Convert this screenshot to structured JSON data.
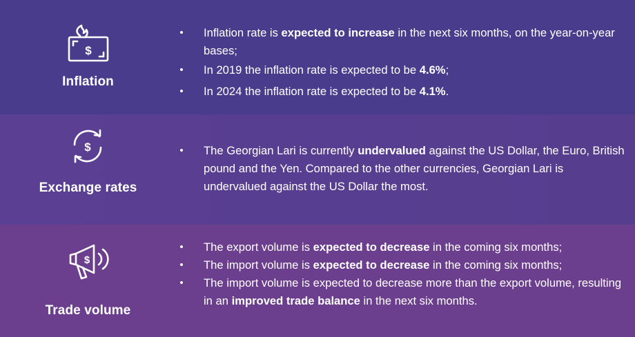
{
  "inflation": {
    "label": "Inflation",
    "icon": "money-flame-icon",
    "bullets": [
      {
        "pre": "Inflation rate is ",
        "bold": "expected to increase",
        "post": " in the next six months, on the year-on-year bases;"
      },
      {
        "pre": "In 2019 the inflation rate is expected to be ",
        "bold": "4.6%",
        "post": ";"
      },
      {
        "pre": "In 2024 the inflation rate is expected to be ",
        "bold": "4.1%",
        "post": "."
      }
    ]
  },
  "exchange": {
    "label": "Exchange rates",
    "icon": "currency-exchange-icon",
    "bullets": [
      {
        "pre": "The Georgian Lari is currently ",
        "bold": "undervalued",
        "post": " against the US Dollar, the Euro, British pound and the Yen. Compared to the other currencies, Georgian Lari is undervalued against the US Dollar the most."
      }
    ]
  },
  "trade": {
    "label": "Trade volume",
    "icon": "megaphone-dollar-icon",
    "bullets": [
      {
        "pre": "The export volume is ",
        "bold": "expected to decrease",
        "post": " in the coming six months;"
      },
      {
        "pre": "The import volume is ",
        "bold": "expected to decrease",
        "post": " in the coming six months;"
      },
      {
        "pre": "The import volume is expected to decrease more than the export volume, resulting in an ",
        "bold": "improved trade balance",
        "post": " in the next six months."
      }
    ]
  },
  "bullet_char": "•",
  "colors": {
    "band1": "#4a3c8c",
    "band2": "#5a3f92",
    "band3": "#6c3f8e",
    "text": "#ffffff"
  }
}
